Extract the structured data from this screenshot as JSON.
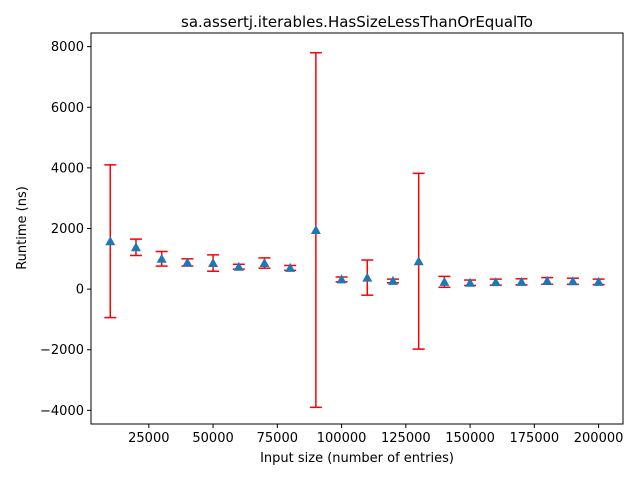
{
  "chart_data": {
    "type": "scatter",
    "title": "sa.assertj.iterables.HasSizeLessThanOrEqualTo",
    "xlabel": "Input size (number of entries)",
    "ylabel": "Runtime (ns)",
    "xlim": [
      2500,
      209500
    ],
    "ylim": [
      -4450,
      8450
    ],
    "xticks": [
      25000,
      50000,
      75000,
      100000,
      125000,
      150000,
      175000,
      200000
    ],
    "xtick_labels": [
      "25000",
      "50000",
      "75000",
      "100000",
      "125000",
      "150000",
      "175000",
      "200000"
    ],
    "yticks": [
      -4000,
      -2000,
      0,
      2000,
      4000,
      6000,
      8000
    ],
    "ytick_labels": [
      "−4000",
      "−2000",
      "0",
      "2000",
      "4000",
      "6000",
      "8000"
    ],
    "grid": false,
    "marker_color": "#1f77b4",
    "errorbar_color": "#ff0000",
    "series": [
      {
        "x": [
          10000,
          20000,
          30000,
          40000,
          50000,
          60000,
          70000,
          80000,
          90000,
          100000,
          110000,
          120000,
          130000,
          140000,
          150000,
          160000,
          170000,
          180000,
          190000,
          200000
        ],
        "y": [
          1580,
          1380,
          1000,
          880,
          860,
          740,
          860,
          700,
          1950,
          320,
          380,
          270,
          920,
          240,
          210,
          230,
          240,
          270,
          260,
          240
        ],
        "yerr": [
          2520,
          270,
          240,
          120,
          270,
          80,
          170,
          80,
          5850,
          80,
          580,
          60,
          2900,
          180,
          90,
          100,
          100,
          110,
          100,
          90
        ]
      }
    ]
  }
}
